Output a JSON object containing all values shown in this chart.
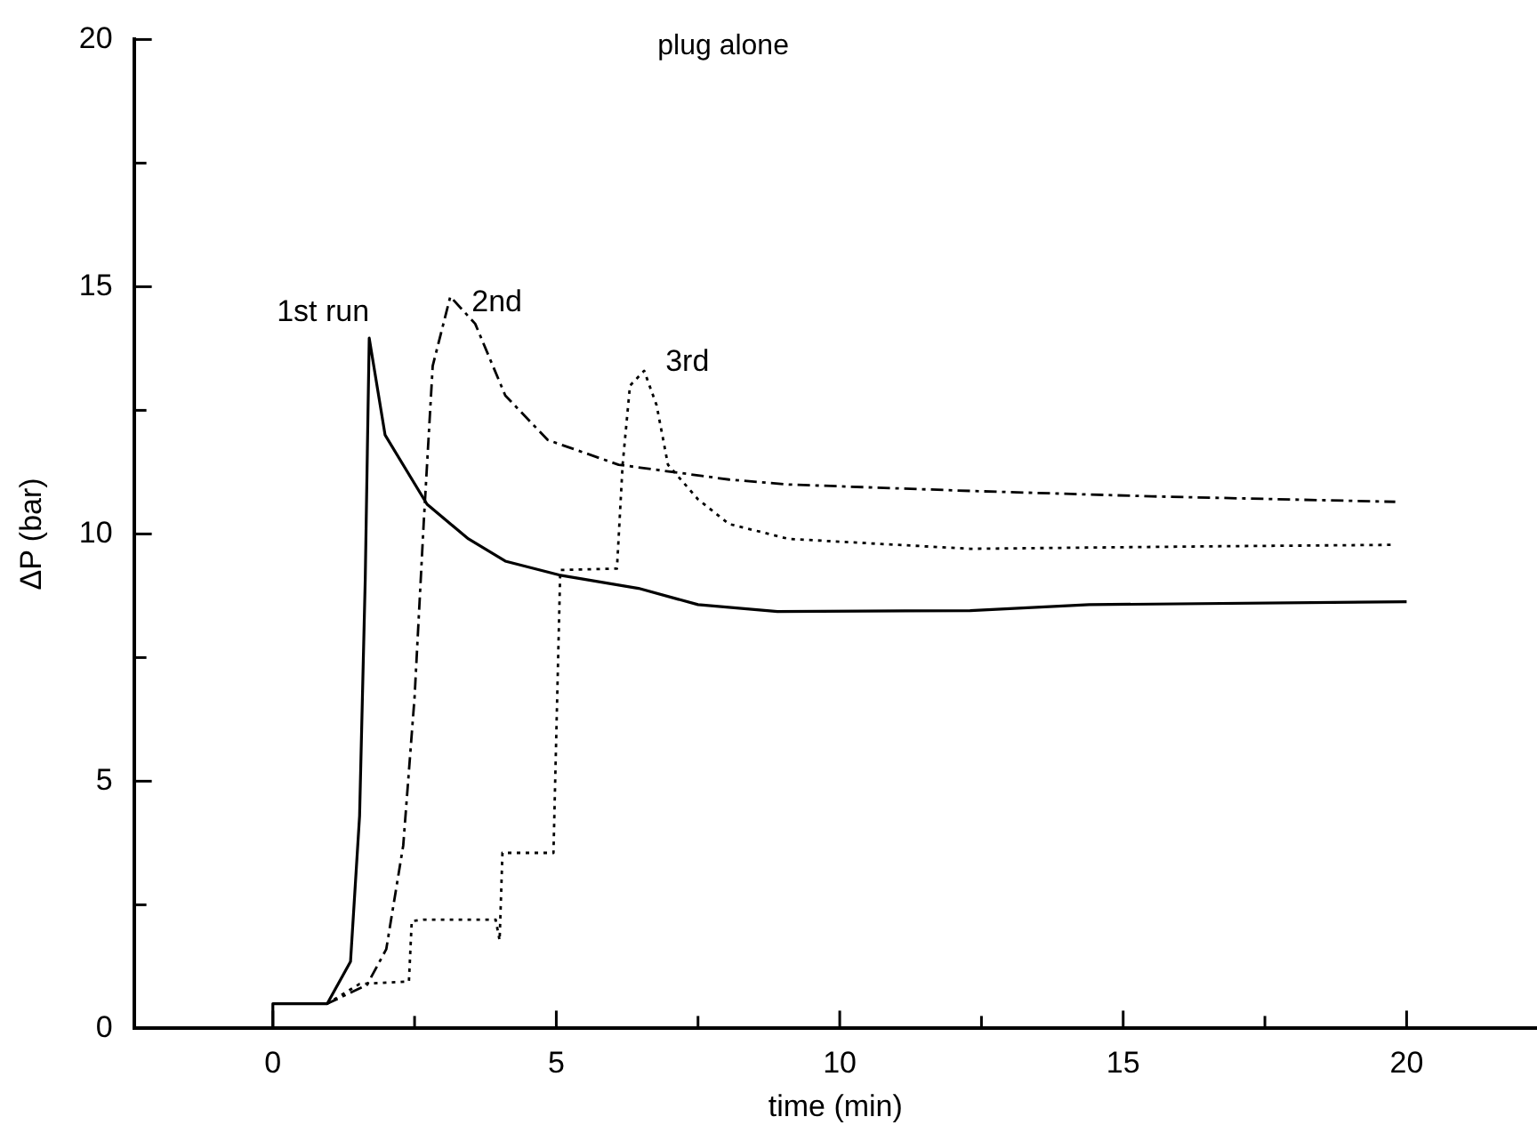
{
  "chart_data": {
    "type": "line",
    "title": "plug alone",
    "xlabel": "time (min)",
    "ylabel": "ΔP (bar)",
    "xlim": [
      -2.45,
      22.3
    ],
    "ylim": [
      0,
      20
    ],
    "xticks": [
      0,
      {
        "value": 2.5,
        "label": null
      },
      5,
      {
        "value": 7.5,
        "label": null
      },
      10,
      {
        "value": 12.5,
        "label": null
      },
      15,
      {
        "value": 17.5,
        "label": null
      },
      20
    ],
    "yticks": [
      0,
      {
        "value": 2.5,
        "label": null
      },
      5,
      {
        "value": 7.5,
        "label": null
      },
      10,
      {
        "value": 12.5,
        "label": null
      },
      15,
      {
        "value": 17.5,
        "label": null
      },
      20
    ],
    "grid": false,
    "legend": false,
    "marker": "none",
    "series": [
      {
        "name": "1st run",
        "color": "#000000",
        "line_style": "solid",
        "x": [
          0,
          0,
          0.96,
          1.37,
          1.53,
          1.63,
          1.7,
          1.98,
          2.72,
          3.45,
          4.1,
          5.05,
          6.45,
          7.5,
          8.9,
          12.3,
          14.4,
          20
        ],
        "values": [
          0,
          0.5,
          0.5,
          1.35,
          4.3,
          9.1,
          13.96,
          12.0,
          10.6,
          9.9,
          9.45,
          9.17,
          8.9,
          8.57,
          8.43,
          8.45,
          8.57,
          8.63
        ]
      },
      {
        "name": "2nd",
        "color": "#000000",
        "line_style": "dashed",
        "x": [
          0,
          0.96,
          1.66,
          2.0,
          2.3,
          2.5,
          2.66,
          2.82,
          3.13,
          3.57,
          4.1,
          4.85,
          6.1,
          8.05,
          9.1,
          12.3,
          15.5,
          19.8
        ],
        "values": [
          0.5,
          0.5,
          0.88,
          1.6,
          3.7,
          6.7,
          10.2,
          13.4,
          14.8,
          14.25,
          12.8,
          11.9,
          11.4,
          11.1,
          11.0,
          10.87,
          10.76,
          10.65
        ]
      },
      {
        "name": "3rd",
        "color": "#000000",
        "line_style": "dotted",
        "x": [
          0,
          0.96,
          1.53,
          2.4,
          2.45,
          2.65,
          3.93,
          4.0,
          4.05,
          4.95,
          5.07,
          6.07,
          6.17,
          6.3,
          6.55,
          6.77,
          6.97,
          7.5,
          8.05,
          9.1,
          12.3,
          16.55,
          19.8
        ],
        "values": [
          0.5,
          0.5,
          0.9,
          0.95,
          2.17,
          2.2,
          2.2,
          1.78,
          3.55,
          3.55,
          9.27,
          9.3,
          11.4,
          13.0,
          13.3,
          12.6,
          11.4,
          10.7,
          10.2,
          9.9,
          9.7,
          9.75,
          9.78
        ]
      }
    ]
  }
}
